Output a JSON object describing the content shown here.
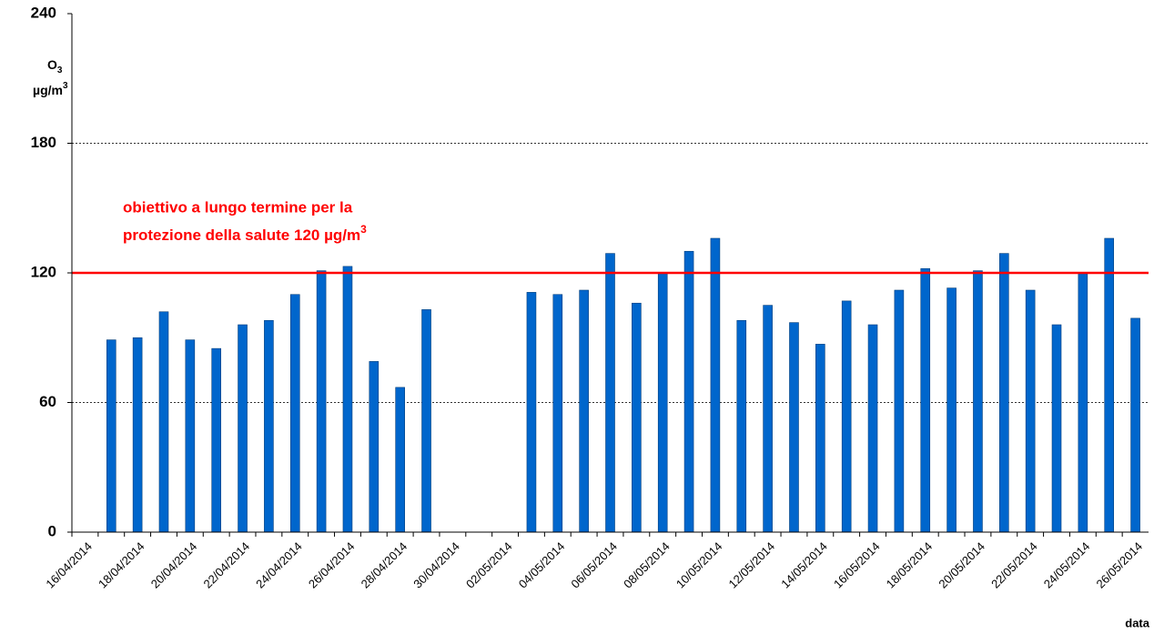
{
  "chart_data": {
    "type": "bar",
    "ylabel": {
      "text": "O",
      "sub": "3",
      "unit": "µg/m",
      "unit_sup": "3"
    },
    "xlabel": "data",
    "annotation": {
      "line1": "obiettivo a lungo termine per la",
      "line2": "protezione della salute 120 µg/m",
      "line2_sup": "3"
    },
    "threshold": {
      "value": 120,
      "color": "#ff0000"
    },
    "categories": [
      "16/04/2014",
      null,
      "18/04/2014",
      null,
      "20/04/2014",
      null,
      "22/04/2014",
      null,
      "24/04/2014",
      null,
      "26/04/2014",
      null,
      "28/04/2014",
      null,
      "30/04/2014",
      null,
      "02/05/2014",
      null,
      "04/05/2014",
      null,
      "06/05/2014",
      null,
      "08/05/2014",
      null,
      "10/05/2014",
      null,
      "12/05/2014",
      null,
      "14/05/2014",
      null,
      "16/05/2014",
      null,
      "18/05/2014",
      null,
      "20/05/2014",
      null,
      "22/05/2014",
      null,
      "24/05/2014",
      null,
      "26/05/2014"
    ],
    "values": [
      null,
      89,
      90,
      102,
      89,
      85,
      96,
      98,
      110,
      121,
      123,
      79,
      67,
      103,
      null,
      null,
      null,
      111,
      110,
      112,
      129,
      106,
      120,
      130,
      136,
      98,
      105,
      97,
      87,
      107,
      96,
      112,
      122,
      113,
      121,
      129,
      112,
      96,
      120,
      136,
      99
    ],
    "color": "#0066cc",
    "ylim": [
      0,
      240
    ],
    "yticks": [
      0,
      60,
      120,
      180,
      240
    ],
    "grid": true
  }
}
